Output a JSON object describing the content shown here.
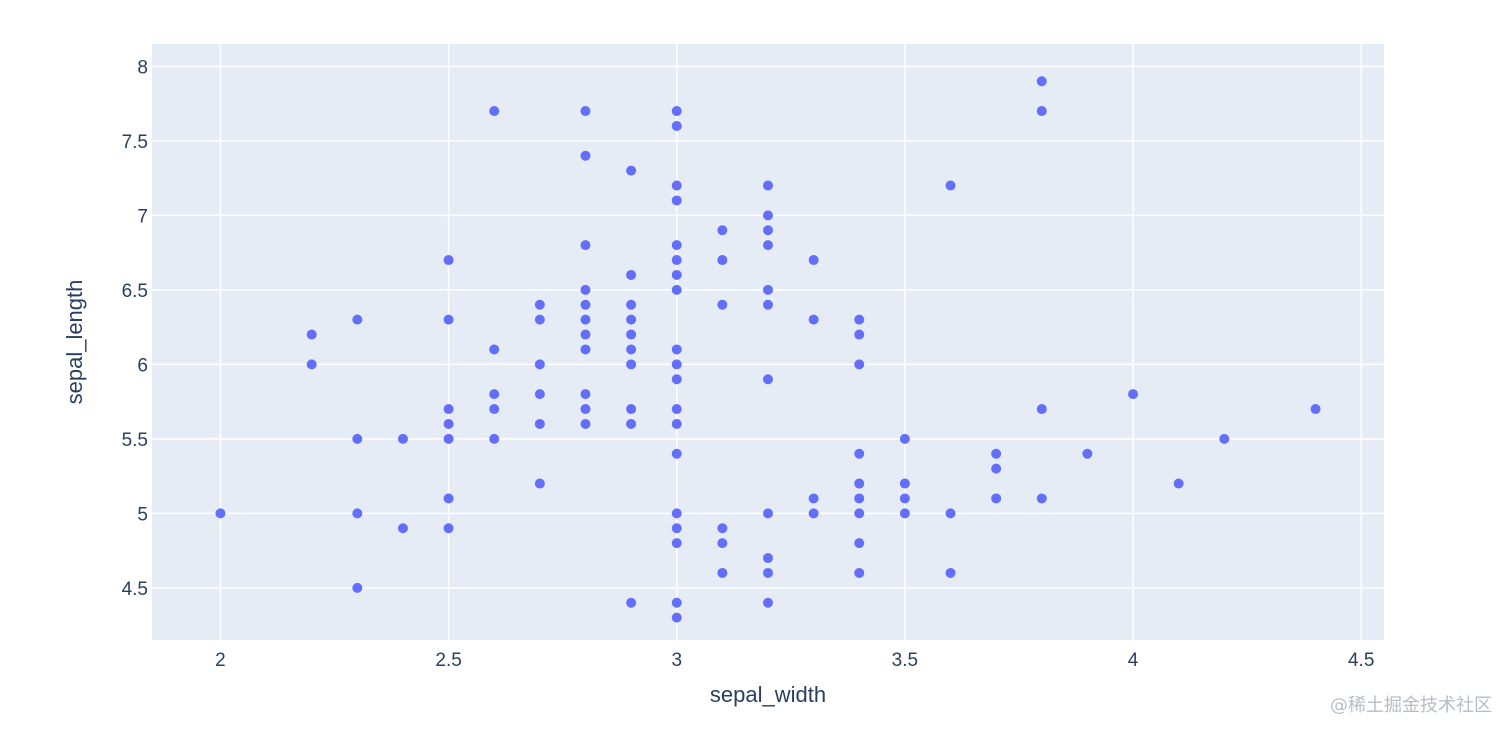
{
  "watermark": "@稀土掘金技术社区",
  "colors": {
    "plot_background": "#e5ecf6",
    "grid": "#ffffff",
    "marker": "#636efa",
    "text": "#2a3f5f"
  },
  "chart_data": {
    "type": "scatter",
    "title": "",
    "xlabel": "sepal_width",
    "ylabel": "sepal_length",
    "xlim": [
      1.85,
      4.55
    ],
    "ylim": [
      4.15,
      8.15
    ],
    "x_ticks": [
      2,
      2.5,
      3,
      3.5,
      4,
      4.5
    ],
    "x_tick_labels": [
      "2",
      "2.5",
      "3",
      "3.5",
      "4",
      "4.5"
    ],
    "y_ticks": [
      4.5,
      5,
      5.5,
      6,
      6.5,
      7,
      7.5,
      8
    ],
    "y_tick_labels": [
      "4.5",
      "5",
      "5.5",
      "6",
      "6.5",
      "7",
      "7.5",
      "8"
    ],
    "grid": true,
    "legend": false,
    "points": [
      [
        2.0,
        5.0
      ],
      [
        2.2,
        6.2
      ],
      [
        2.2,
        6.0
      ],
      [
        2.3,
        6.3
      ],
      [
        2.3,
        5.5
      ],
      [
        2.3,
        5.0
      ],
      [
        2.3,
        4.5
      ],
      [
        2.4,
        5.5
      ],
      [
        2.4,
        4.9
      ],
      [
        2.5,
        6.7
      ],
      [
        2.5,
        6.3
      ],
      [
        2.5,
        5.7
      ],
      [
        2.5,
        5.6
      ],
      [
        2.5,
        5.5
      ],
      [
        2.5,
        5.1
      ],
      [
        2.5,
        4.9
      ],
      [
        2.6,
        7.7
      ],
      [
        2.6,
        6.1
      ],
      [
        2.6,
        5.8
      ],
      [
        2.6,
        5.7
      ],
      [
        2.6,
        5.5
      ],
      [
        2.7,
        6.4
      ],
      [
        2.7,
        6.3
      ],
      [
        2.7,
        6.0
      ],
      [
        2.7,
        5.8
      ],
      [
        2.7,
        5.6
      ],
      [
        2.7,
        5.2
      ],
      [
        2.8,
        7.7
      ],
      [
        2.8,
        7.4
      ],
      [
        2.8,
        6.8
      ],
      [
        2.8,
        6.5
      ],
      [
        2.8,
        6.4
      ],
      [
        2.8,
        6.3
      ],
      [
        2.8,
        6.2
      ],
      [
        2.8,
        6.1
      ],
      [
        2.8,
        5.8
      ],
      [
        2.8,
        5.7
      ],
      [
        2.8,
        5.6
      ],
      [
        2.9,
        7.3
      ],
      [
        2.9,
        6.6
      ],
      [
        2.9,
        6.4
      ],
      [
        2.9,
        6.3
      ],
      [
        2.9,
        6.2
      ],
      [
        2.9,
        6.1
      ],
      [
        2.9,
        6.0
      ],
      [
        2.9,
        5.7
      ],
      [
        2.9,
        5.6
      ],
      [
        2.9,
        4.4
      ],
      [
        3.0,
        7.7
      ],
      [
        3.0,
        7.6
      ],
      [
        3.0,
        7.2
      ],
      [
        3.0,
        7.1
      ],
      [
        3.0,
        6.8
      ],
      [
        3.0,
        6.7
      ],
      [
        3.0,
        6.6
      ],
      [
        3.0,
        6.5
      ],
      [
        3.0,
        6.1
      ],
      [
        3.0,
        6.0
      ],
      [
        3.0,
        5.9
      ],
      [
        3.0,
        5.7
      ],
      [
        3.0,
        5.6
      ],
      [
        3.0,
        5.4
      ],
      [
        3.0,
        5.0
      ],
      [
        3.0,
        4.9
      ],
      [
        3.0,
        4.8
      ],
      [
        3.0,
        4.4
      ],
      [
        3.0,
        4.3
      ],
      [
        3.1,
        6.9
      ],
      [
        3.1,
        6.7
      ],
      [
        3.1,
        6.4
      ],
      [
        3.1,
        4.9
      ],
      [
        3.1,
        4.8
      ],
      [
        3.1,
        4.6
      ],
      [
        3.2,
        7.2
      ],
      [
        3.2,
        7.0
      ],
      [
        3.2,
        6.9
      ],
      [
        3.2,
        6.8
      ],
      [
        3.2,
        6.5
      ],
      [
        3.2,
        6.4
      ],
      [
        3.2,
        5.9
      ],
      [
        3.2,
        5.0
      ],
      [
        3.2,
        4.7
      ],
      [
        3.2,
        4.6
      ],
      [
        3.2,
        4.4
      ],
      [
        3.3,
        6.7
      ],
      [
        3.3,
        6.3
      ],
      [
        3.3,
        5.1
      ],
      [
        3.3,
        5.0
      ],
      [
        3.4,
        6.3
      ],
      [
        3.4,
        6.2
      ],
      [
        3.4,
        6.0
      ],
      [
        3.4,
        5.4
      ],
      [
        3.4,
        5.2
      ],
      [
        3.4,
        5.1
      ],
      [
        3.4,
        5.0
      ],
      [
        3.4,
        4.8
      ],
      [
        3.4,
        4.6
      ],
      [
        3.5,
        5.5
      ],
      [
        3.5,
        5.2
      ],
      [
        3.5,
        5.1
      ],
      [
        3.5,
        5.0
      ],
      [
        3.6,
        7.2
      ],
      [
        3.6,
        5.0
      ],
      [
        3.6,
        4.6
      ],
      [
        3.7,
        5.4
      ],
      [
        3.7,
        5.3
      ],
      [
        3.7,
        5.1
      ],
      [
        3.8,
        7.9
      ],
      [
        3.8,
        7.7
      ],
      [
        3.8,
        5.7
      ],
      [
        3.8,
        5.1
      ],
      [
        3.9,
        5.4
      ],
      [
        4.0,
        5.8
      ],
      [
        4.1,
        5.2
      ],
      [
        4.2,
        5.5
      ],
      [
        4.4,
        5.7
      ]
    ]
  }
}
